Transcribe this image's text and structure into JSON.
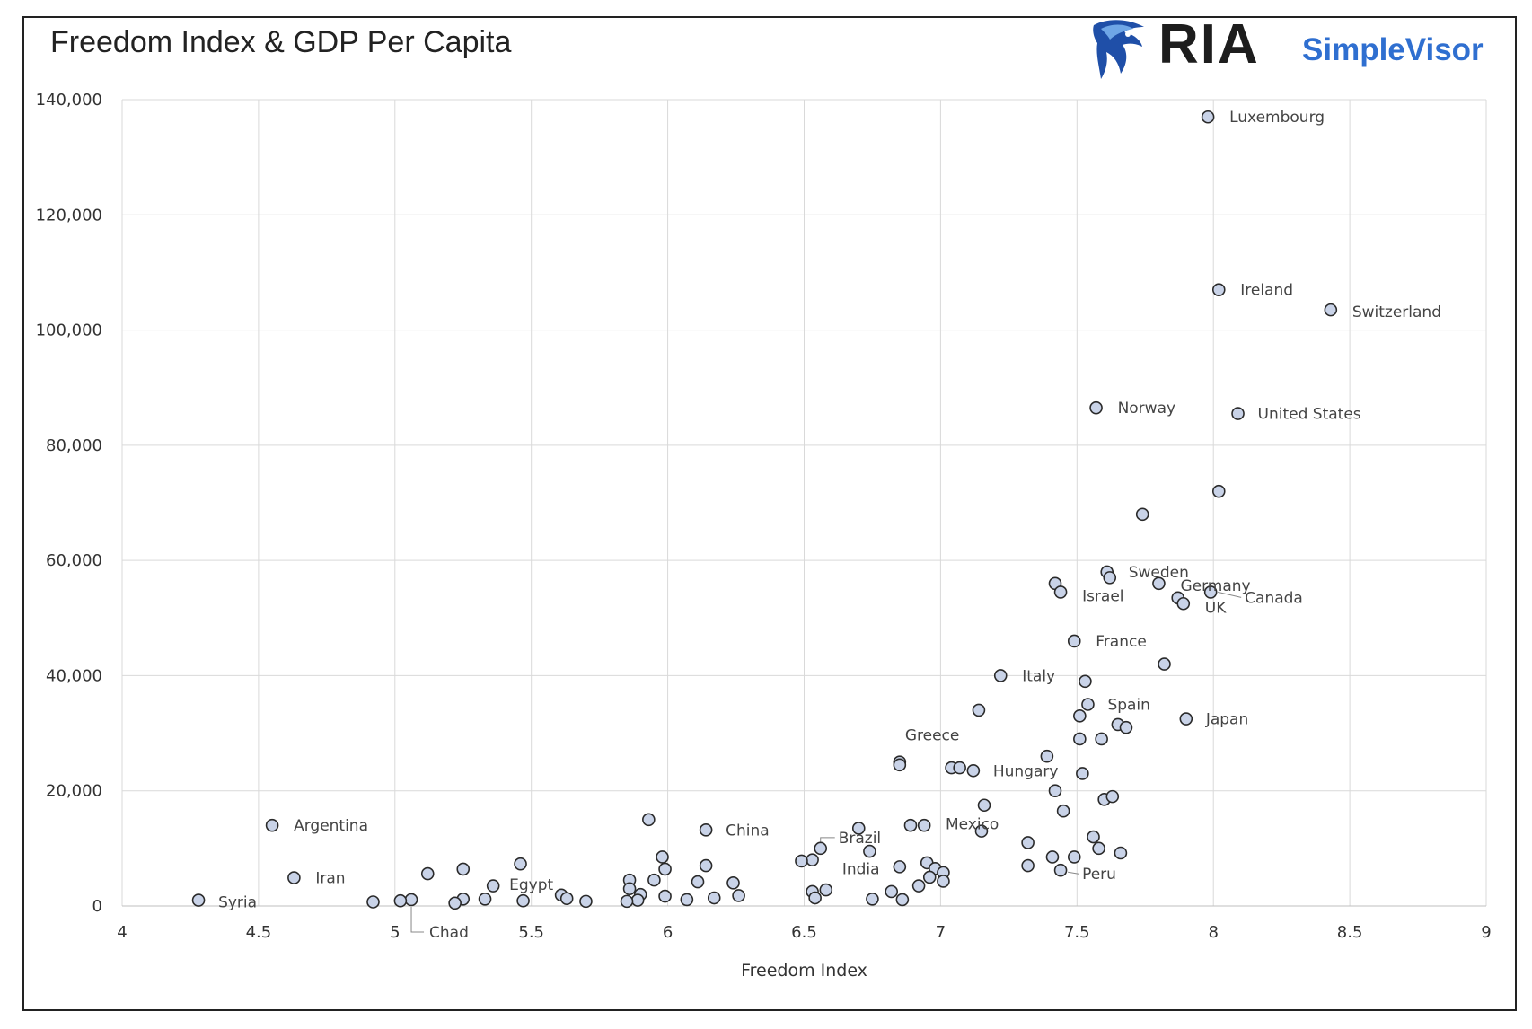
{
  "brand": {
    "name": "RIA",
    "product": "SimpleVisor",
    "logo_icon": "eagle-head-icon"
  },
  "chart_data": {
    "type": "scatter",
    "title": "Freedom Index & GDP Per Capita",
    "xlabel": "Freedom Index",
    "ylabel": "",
    "xlim": [
      4,
      9
    ],
    "ylim": [
      0,
      140000
    ],
    "x_ticks": [
      4,
      4.5,
      5,
      5.5,
      6,
      6.5,
      7,
      7.5,
      8,
      8.5,
      9
    ],
    "x_tick_labels": [
      "4",
      "4.5",
      "5",
      "5.5",
      "6",
      "6.5",
      "7",
      "7.5",
      "8",
      "8.5",
      "9"
    ],
    "y_ticks": [
      0,
      20000,
      40000,
      60000,
      80000,
      100000,
      120000,
      140000
    ],
    "y_tick_labels": [
      "0",
      "20,000",
      "40,000",
      "60,000",
      "80,000",
      "100,000",
      "120,000",
      "140,000"
    ],
    "grid": true,
    "legend": "none",
    "marker_fill": "#c9d3e8",
    "marker_edge": "#2a2a2a",
    "highlight_color": "#e02020",
    "label_color": "#444444",
    "points": [
      {
        "x": 7.98,
        "y": 137000,
        "label": "Luxembourg"
      },
      {
        "x": 8.02,
        "y": 107000,
        "label": "Ireland"
      },
      {
        "x": 8.43,
        "y": 103500,
        "label": "Switzerland"
      },
      {
        "x": 7.57,
        "y": 86500,
        "label": "Norway"
      },
      {
        "x": 8.09,
        "y": 85500,
        "label": "United States",
        "highlight": true
      },
      {
        "x": 8.02,
        "y": 72000,
        "label": ""
      },
      {
        "x": 7.74,
        "y": 68000,
        "label": ""
      },
      {
        "x": 7.61,
        "y": 58000,
        "label": "Sweden"
      },
      {
        "x": 7.62,
        "y": 57000,
        "label": ""
      },
      {
        "x": 7.42,
        "y": 56000,
        "label": ""
      },
      {
        "x": 7.44,
        "y": 54500,
        "label": "Israel"
      },
      {
        "x": 7.8,
        "y": 56000,
        "label": "Germany"
      },
      {
        "x": 7.99,
        "y": 54500,
        "label": "Canada"
      },
      {
        "x": 7.87,
        "y": 53500,
        "label": ""
      },
      {
        "x": 7.89,
        "y": 52500,
        "label": "UK"
      },
      {
        "x": 7.49,
        "y": 46000,
        "label": "France"
      },
      {
        "x": 7.82,
        "y": 42000,
        "label": ""
      },
      {
        "x": 7.22,
        "y": 40000,
        "label": "Italy"
      },
      {
        "x": 7.53,
        "y": 39000,
        "label": ""
      },
      {
        "x": 7.54,
        "y": 35000,
        "label": "Spain"
      },
      {
        "x": 7.14,
        "y": 34000,
        "label": ""
      },
      {
        "x": 7.51,
        "y": 33000,
        "label": ""
      },
      {
        "x": 7.65,
        "y": 31500,
        "label": ""
      },
      {
        "x": 7.68,
        "y": 31000,
        "label": ""
      },
      {
        "x": 7.9,
        "y": 32500,
        "label": "Japan"
      },
      {
        "x": 7.51,
        "y": 29000,
        "label": ""
      },
      {
        "x": 7.59,
        "y": 29000,
        "label": ""
      },
      {
        "x": 6.85,
        "y": 25000,
        "label": "Greece"
      },
      {
        "x": 6.85,
        "y": 24500,
        "label": ""
      },
      {
        "x": 7.39,
        "y": 26000,
        "label": ""
      },
      {
        "x": 7.04,
        "y": 24000,
        "label": ""
      },
      {
        "x": 7.07,
        "y": 24000,
        "label": ""
      },
      {
        "x": 7.12,
        "y": 23500,
        "label": "Hungary"
      },
      {
        "x": 7.52,
        "y": 23000,
        "label": ""
      },
      {
        "x": 7.42,
        "y": 20000,
        "label": ""
      },
      {
        "x": 7.6,
        "y": 18500,
        "label": ""
      },
      {
        "x": 7.63,
        "y": 19000,
        "label": ""
      },
      {
        "x": 7.16,
        "y": 17500,
        "label": ""
      },
      {
        "x": 7.45,
        "y": 16500,
        "label": ""
      },
      {
        "x": 5.93,
        "y": 15000,
        "label": ""
      },
      {
        "x": 4.55,
        "y": 14000,
        "label": "Argentina"
      },
      {
        "x": 6.89,
        "y": 14000,
        "label": ""
      },
      {
        "x": 6.94,
        "y": 14000,
        "label": ""
      },
      {
        "x": 6.7,
        "y": 13500,
        "label": ""
      },
      {
        "x": 6.14,
        "y": 13200,
        "label": "China"
      },
      {
        "x": 7.15,
        "y": 13000,
        "label": "Mexico"
      },
      {
        "x": 7.56,
        "y": 12000,
        "label": ""
      },
      {
        "x": 7.32,
        "y": 11000,
        "label": ""
      },
      {
        "x": 7.58,
        "y": 10000,
        "label": ""
      },
      {
        "x": 6.56,
        "y": 10000,
        "label": "Brazil"
      },
      {
        "x": 6.74,
        "y": 9500,
        "label": ""
      },
      {
        "x": 7.66,
        "y": 9200,
        "label": ""
      },
      {
        "x": 5.98,
        "y": 8500,
        "label": ""
      },
      {
        "x": 7.41,
        "y": 8500,
        "label": ""
      },
      {
        "x": 7.49,
        "y": 8500,
        "label": ""
      },
      {
        "x": 6.53,
        "y": 8000,
        "label": ""
      },
      {
        "x": 6.49,
        "y": 7800,
        "label": ""
      },
      {
        "x": 5.46,
        "y": 7300,
        "label": ""
      },
      {
        "x": 6.95,
        "y": 7500,
        "label": ""
      },
      {
        "x": 6.14,
        "y": 7000,
        "label": ""
      },
      {
        "x": 7.32,
        "y": 7000,
        "label": ""
      },
      {
        "x": 6.85,
        "y": 6800,
        "label": "India"
      },
      {
        "x": 5.99,
        "y": 6400,
        "label": ""
      },
      {
        "x": 5.25,
        "y": 6400,
        "label": ""
      },
      {
        "x": 7.44,
        "y": 6200,
        "label": "Peru"
      },
      {
        "x": 6.98,
        "y": 6500,
        "label": ""
      },
      {
        "x": 7.01,
        "y": 5800,
        "label": ""
      },
      {
        "x": 5.12,
        "y": 5600,
        "label": ""
      },
      {
        "x": 6.96,
        "y": 5000,
        "label": ""
      },
      {
        "x": 4.63,
        "y": 4900,
        "label": "Iran"
      },
      {
        "x": 5.86,
        "y": 4500,
        "label": ""
      },
      {
        "x": 5.95,
        "y": 4500,
        "label": ""
      },
      {
        "x": 7.01,
        "y": 4300,
        "label": ""
      },
      {
        "x": 6.11,
        "y": 4200,
        "label": ""
      },
      {
        "x": 6.24,
        "y": 4000,
        "label": ""
      },
      {
        "x": 6.92,
        "y": 3500,
        "label": ""
      },
      {
        "x": 5.36,
        "y": 3500,
        "label": ""
      },
      {
        "x": 5.86,
        "y": 3000,
        "label": ""
      },
      {
        "x": 6.58,
        "y": 2800,
        "label": ""
      },
      {
        "x": 6.53,
        "y": 2500,
        "label": ""
      },
      {
        "x": 6.82,
        "y": 2500,
        "label": ""
      },
      {
        "x": 5.9,
        "y": 2000,
        "label": ""
      },
      {
        "x": 5.61,
        "y": 1900,
        "label": "Egypt"
      },
      {
        "x": 6.26,
        "y": 1800,
        "label": ""
      },
      {
        "x": 5.99,
        "y": 1700,
        "label": ""
      },
      {
        "x": 6.54,
        "y": 1400,
        "label": ""
      },
      {
        "x": 5.63,
        "y": 1300,
        "label": ""
      },
      {
        "x": 6.17,
        "y": 1400,
        "label": ""
      },
      {
        "x": 5.25,
        "y": 1200,
        "label": ""
      },
      {
        "x": 5.33,
        "y": 1200,
        "label": ""
      },
      {
        "x": 6.75,
        "y": 1200,
        "label": ""
      },
      {
        "x": 4.28,
        "y": 1000,
        "label": "Syria"
      },
      {
        "x": 5.06,
        "y": 1100,
        "label": "Chad"
      },
      {
        "x": 6.07,
        "y": 1100,
        "label": ""
      },
      {
        "x": 6.86,
        "y": 1100,
        "label": ""
      },
      {
        "x": 5.89,
        "y": 1000,
        "label": ""
      },
      {
        "x": 5.02,
        "y": 900,
        "label": ""
      },
      {
        "x": 5.47,
        "y": 900,
        "label": ""
      },
      {
        "x": 5.7,
        "y": 800,
        "label": ""
      },
      {
        "x": 5.85,
        "y": 800,
        "label": ""
      },
      {
        "x": 4.92,
        "y": 700,
        "label": ""
      },
      {
        "x": 5.22,
        "y": 500,
        "label": ""
      }
    ]
  }
}
